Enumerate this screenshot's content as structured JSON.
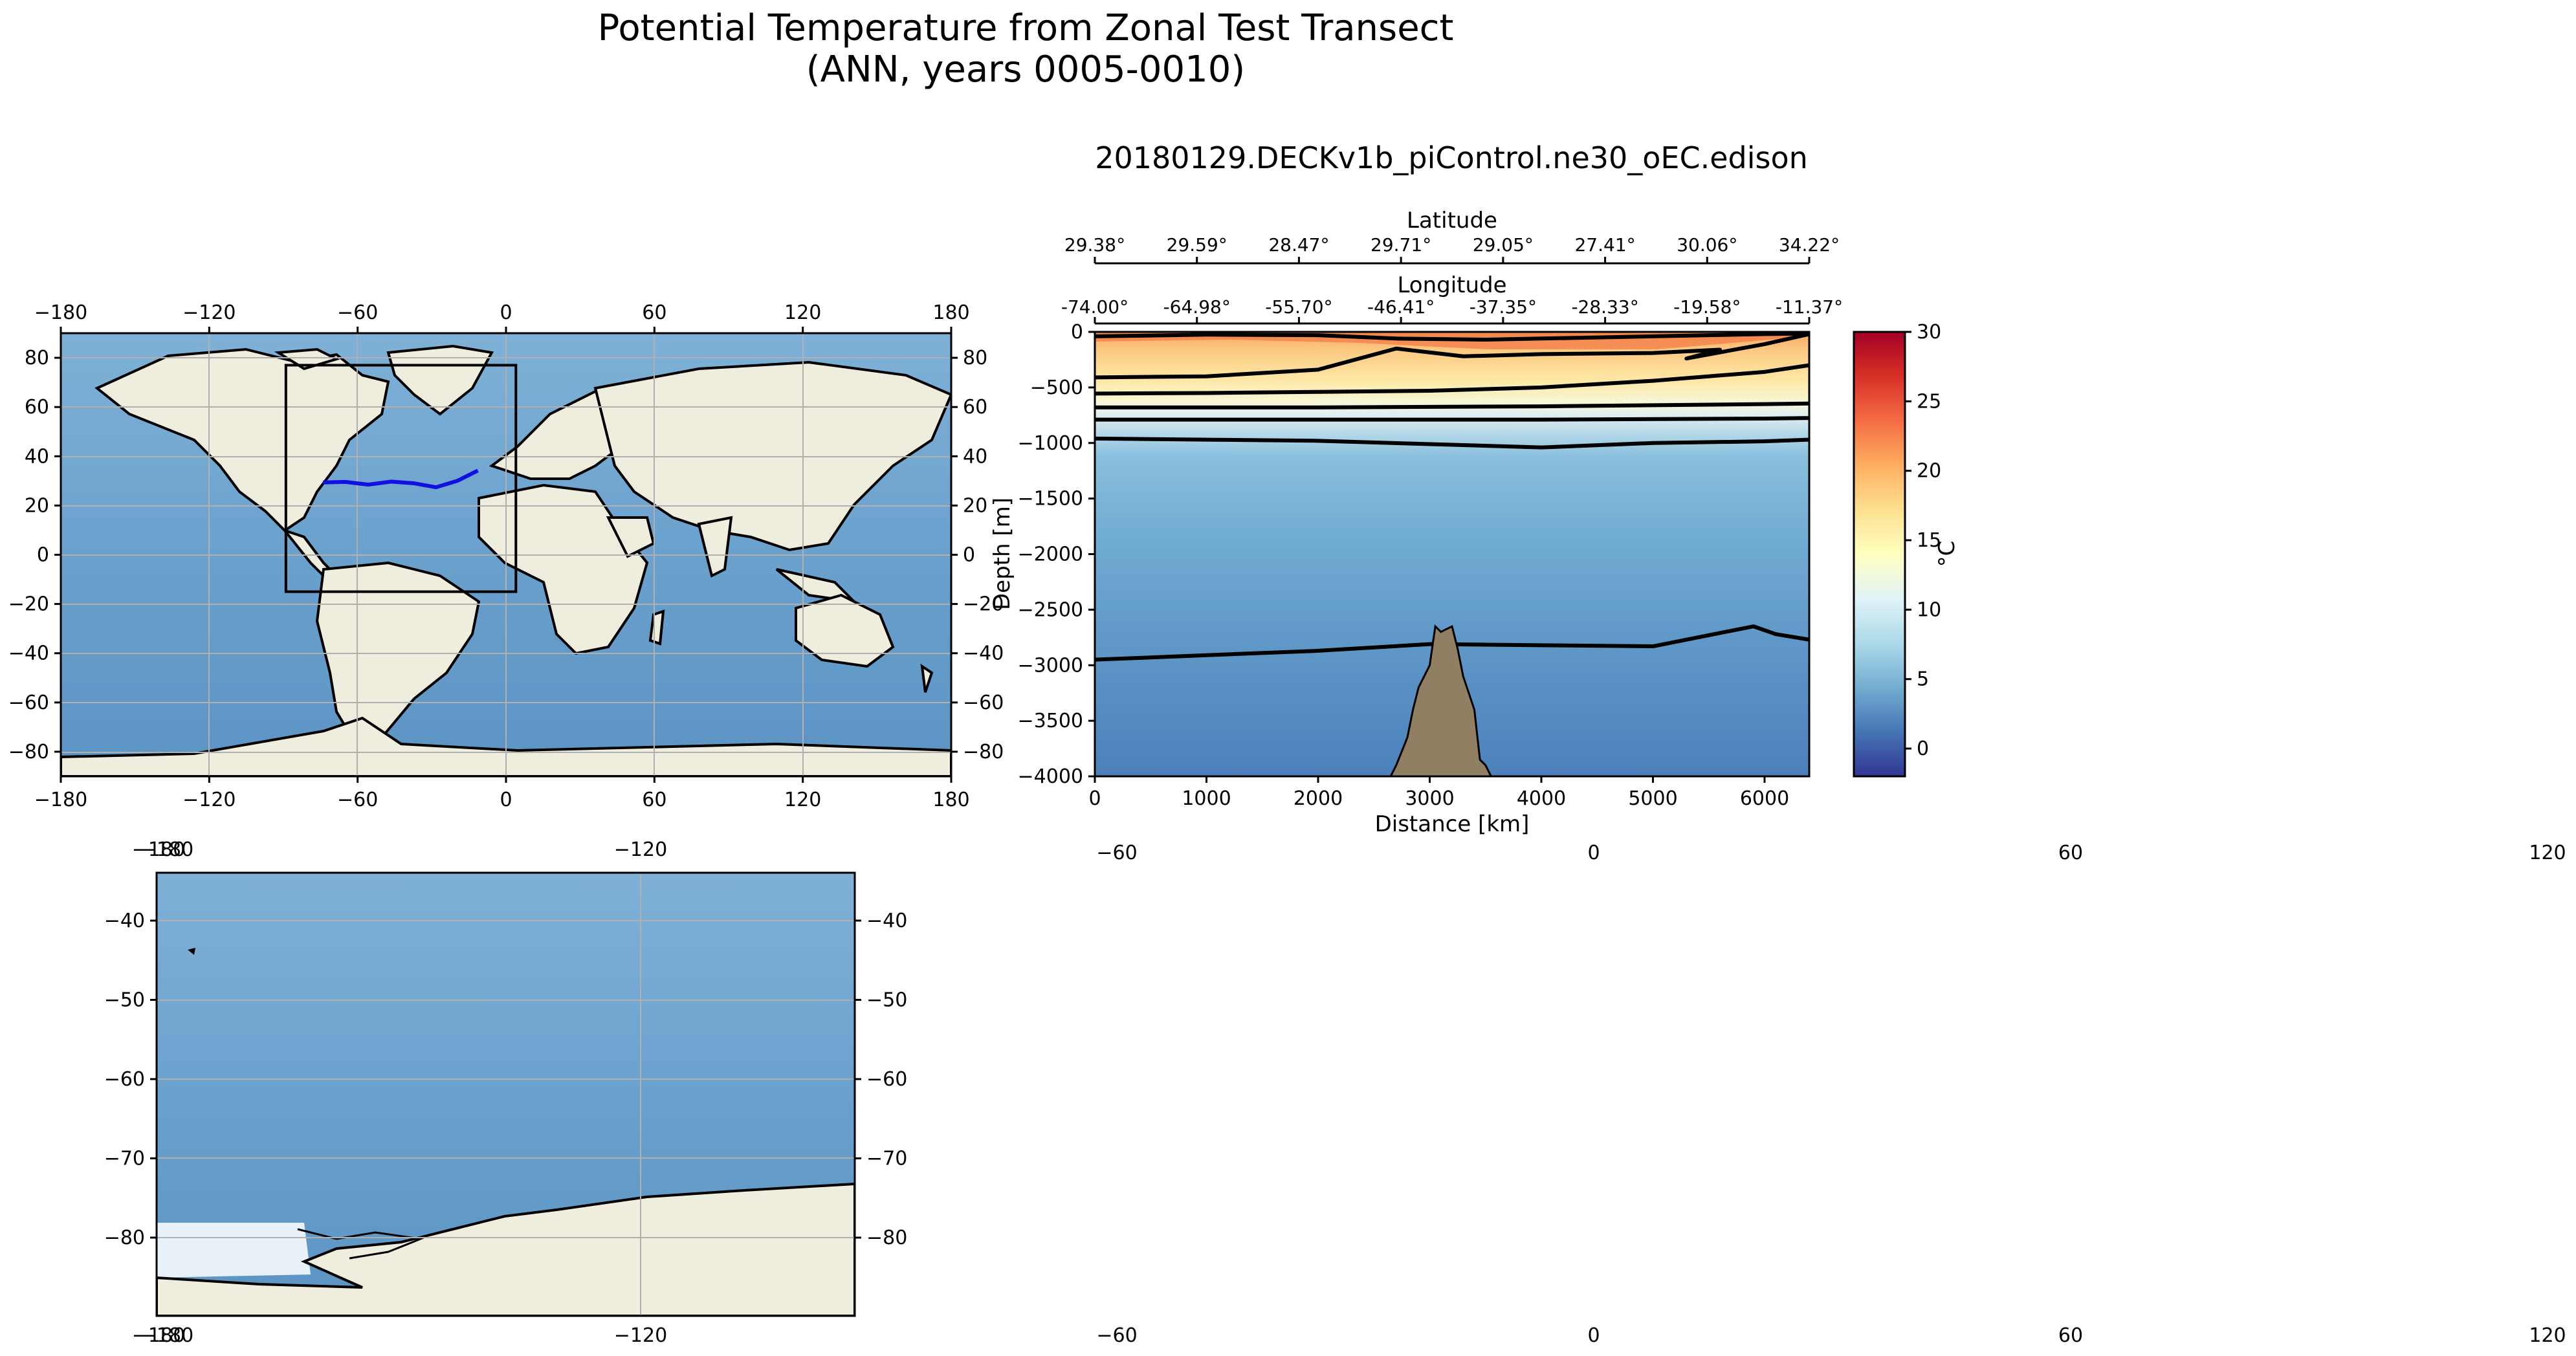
{
  "figure": {
    "title_line1": "Potential Temperature from Zonal Test Transect",
    "title_line2": "(ANN, years 0005-0010)",
    "run_name": "20180129.DECKv1b_piControl.ne30_oEC.edison"
  },
  "colors": {
    "ocean": "#6a9ec9",
    "land": "#efedde",
    "ice": "#e8f0f8",
    "transect_line": "#1010e0",
    "bathymetry": "#917f64"
  },
  "chart_data": [
    {
      "type": "map",
      "name": "global-map",
      "x_ticks": [
        "−180",
        "−120",
        "−60",
        "0",
        "60",
        "120",
        "180"
      ],
      "y_ticks": [
        "80",
        "60",
        "40",
        "20",
        "0",
        "−20",
        "−40",
        "−60",
        "−80"
      ],
      "xlim": [
        -180,
        180
      ],
      "ylim": [
        -90,
        90
      ],
      "region_box": {
        "lon": [
          -89,
          4
        ],
        "lat": [
          -15,
          77
        ]
      },
      "transect": [
        {
          "lon": -74.0,
          "lat": 29.38
        },
        {
          "lon": -64.98,
          "lat": 29.59
        },
        {
          "lon": -55.7,
          "lat": 28.47
        },
        {
          "lon": -46.41,
          "lat": 29.71
        },
        {
          "lon": -37.35,
          "lat": 29.05
        },
        {
          "lon": -28.33,
          "lat": 27.41
        },
        {
          "lon": -19.58,
          "lat": 30.06
        },
        {
          "lon": -11.37,
          "lat": 34.22
        }
      ]
    },
    {
      "type": "map",
      "name": "regional-map",
      "top_x_ticks": [
        "−180",
        "−180",
        "−120"
      ],
      "bottom_x_ticks": [
        "−180",
        "−180",
        "−120"
      ],
      "y_ticks": [
        "−40",
        "−50",
        "−60",
        "−70",
        "−80"
      ],
      "ylim": [
        -90,
        -34
      ]
    },
    {
      "type": "heatmap",
      "name": "transect-section",
      "xlabel": "Distance [km]",
      "ylabel": "Depth [m]",
      "x_ticks": [
        "0",
        "1000",
        "2000",
        "3000",
        "4000",
        "5000",
        "6000"
      ],
      "y_ticks": [
        "0",
        "−500",
        "−1000",
        "−1500",
        "−2000",
        "−2500",
        "−3000",
        "−3500",
        "−4000"
      ],
      "xlim": [
        0,
        6400
      ],
      "ylim": [
        -4000,
        0
      ],
      "latitude_axis_label": "Latitude",
      "latitude_ticks": [
        "29.38°",
        "29.59°",
        "28.47°",
        "29.71°",
        "29.05°",
        "27.41°",
        "30.06°",
        "34.22°"
      ],
      "longitude_axis_label": "Longitude",
      "longitude_ticks": [
        "-74.00°",
        "-64.98°",
        "-55.70°",
        "-46.41°",
        "-37.35°",
        "-28.33°",
        "-19.58°",
        "-11.37°"
      ],
      "contour_depths_m": [
        {
          "level": "upper-1",
          "x": [
            0,
            1000,
            2000,
            2700,
            3500,
            4500,
            5500,
            6000,
            6400
          ],
          "depth": [
            -40,
            -25,
            -30,
            -60,
            -70,
            -50,
            -30,
            -20,
            -15
          ]
        },
        {
          "level": "upper-2",
          "x": [
            0,
            1000,
            2000,
            2700,
            3300,
            4000,
            5000,
            5600,
            5300,
            6000,
            6400
          ],
          "depth": [
            -410,
            -400,
            -340,
            -150,
            -220,
            -200,
            -190,
            -160,
            -240,
            -110,
            -20
          ]
        },
        {
          "level": "mid-1",
          "x": [
            0,
            1000,
            2000,
            3000,
            4000,
            5000,
            6000,
            6400
          ],
          "depth": [
            -555,
            -550,
            -540,
            -530,
            -500,
            -440,
            -360,
            -300
          ]
        },
        {
          "level": "mid-2",
          "x": [
            0,
            2000,
            4000,
            6000,
            6400
          ],
          "depth": [
            -680,
            -680,
            -670,
            -650,
            -645
          ]
        },
        {
          "level": "mid-3",
          "x": [
            0,
            2000,
            4000,
            6000,
            6400
          ],
          "depth": [
            -790,
            -790,
            -790,
            -780,
            -775
          ]
        },
        {
          "level": "deep-1",
          "x": [
            0,
            1000,
            2000,
            3000,
            4000,
            5000,
            6000,
            6400
          ],
          "depth": [
            -960,
            -970,
            -980,
            -1010,
            -1040,
            -1000,
            -985,
            -970
          ]
        },
        {
          "level": "bottom",
          "x": [
            0,
            1000,
            2000,
            3000,
            4000,
            5000,
            5900,
            6100,
            6400
          ],
          "depth": [
            -2950,
            -2910,
            -2870,
            -2810,
            -2820,
            -2830,
            -2650,
            -2720,
            -2770
          ]
        }
      ],
      "bathymetry_profile": {
        "x": [
          2650,
          2700,
          2800,
          2850,
          2900,
          3000,
          3050,
          3100,
          3200,
          3250,
          3300,
          3400,
          3450,
          3500,
          3550
        ],
        "depth": [
          -4000,
          -3900,
          -3650,
          -3400,
          -3200,
          -3000,
          -2650,
          -2700,
          -2650,
          -2850,
          -3100,
          -3400,
          -3850,
          -3900,
          -4000
        ]
      },
      "colorbar": {
        "label": "°C",
        "range": [
          -2,
          30
        ],
        "ticks": [
          "30",
          "25",
          "20",
          "15",
          "10",
          "5",
          "0"
        ]
      }
    },
    {
      "type": "empty",
      "name": "blank-axes",
      "top_ticks": [
        "−60",
        "0",
        "60",
        "120"
      ],
      "bottom_ticks": [
        "−60",
        "0",
        "60",
        "120"
      ]
    }
  ]
}
